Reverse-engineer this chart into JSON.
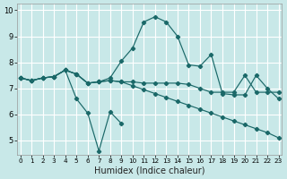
{
  "xlabel": "Humidex (Indice chaleur)",
  "bg_color": "#c8e8e8",
  "grid_color": "#ffffff",
  "line_color": "#1a6868",
  "xlim": [
    -0.3,
    23.3
  ],
  "ylim": [
    4.45,
    10.25
  ],
  "yticks": [
    5,
    6,
    7,
    8,
    9,
    10
  ],
  "xticks": [
    0,
    1,
    2,
    3,
    4,
    5,
    6,
    7,
    8,
    9,
    10,
    11,
    12,
    13,
    14,
    15,
    16,
    17,
    18,
    19,
    20,
    21,
    22,
    23
  ],
  "line1_x": [
    0,
    1,
    2,
    3,
    4,
    5,
    6,
    7,
    8,
    9,
    10,
    11,
    12,
    13,
    14,
    15,
    16,
    17,
    18,
    19,
    20,
    21,
    22,
    23
  ],
  "line1_y": [
    7.4,
    7.3,
    7.4,
    7.45,
    7.7,
    7.55,
    7.2,
    7.25,
    7.4,
    8.05,
    8.55,
    9.55,
    9.75,
    9.55,
    9.0,
    7.9,
    7.85,
    8.3,
    6.8,
    6.75,
    6.75,
    7.5,
    7.0,
    6.6
  ],
  "line2_x": [
    0,
    1,
    2,
    3,
    4,
    5,
    6,
    7,
    8,
    9,
    10,
    11,
    12,
    13,
    14,
    15,
    16,
    17,
    18,
    19,
    20,
    21,
    22,
    23
  ],
  "line2_y": [
    7.4,
    7.3,
    7.4,
    7.45,
    7.7,
    7.55,
    7.2,
    7.25,
    7.3,
    7.25,
    7.25,
    7.2,
    7.2,
    7.2,
    7.2,
    7.15,
    7.0,
    6.85,
    6.85,
    6.85,
    7.5,
    6.85,
    6.85,
    6.85
  ],
  "line3_x": [
    0,
    1,
    2,
    3,
    4,
    5,
    6,
    7,
    8,
    9
  ],
  "line3_y": [
    7.4,
    7.3,
    7.4,
    7.45,
    7.7,
    6.6,
    6.05,
    4.6,
    6.1,
    5.65
  ],
  "line4_x": [
    0,
    1,
    2,
    3,
    4,
    5,
    6,
    7,
    8,
    9,
    10,
    11,
    12,
    13,
    14,
    15,
    16,
    17,
    18,
    19,
    20,
    21,
    22,
    23
  ],
  "line4_y": [
    7.4,
    7.3,
    7.4,
    7.45,
    7.7,
    7.55,
    7.2,
    7.25,
    7.3,
    7.25,
    7.1,
    6.95,
    6.8,
    6.65,
    6.5,
    6.35,
    6.2,
    6.05,
    5.9,
    5.75,
    5.6,
    5.45,
    5.3,
    5.1
  ]
}
